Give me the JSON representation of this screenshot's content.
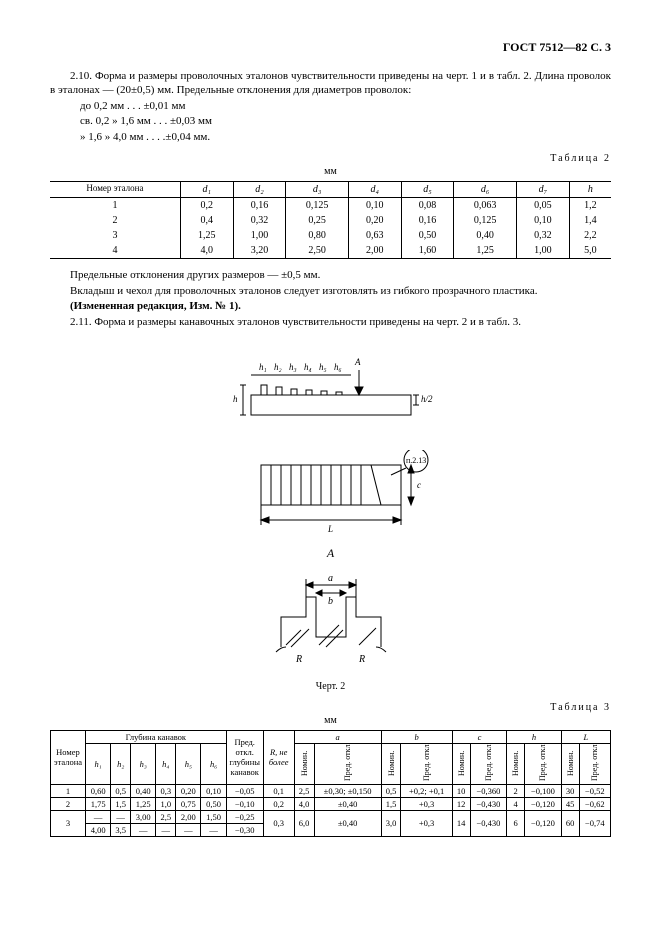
{
  "header": "ГОСТ 7512—82 С. 3",
  "p210": "2.10. Форма и размеры проволочных эталонов чувствительности приведены на черт. 1 и в табл. 2. Длина проволок в эталонах — (20±0,5)  мм. Предельные отклонения для диаметров проволок:",
  "tol1": "до 0,2 мм . . . ±0,01 мм",
  "tol2": "св. 0,2 »  1,6 мм . . . ±0,03 мм",
  "tol3": "»  1,6 »  4,0 мм . . . .±0,04 мм.",
  "tab2label": "Таблица 2",
  "unit_mm": "мм",
  "t2": {
    "headers": [
      "Номер эталона",
      "d₁",
      "d₂",
      "d₃",
      "d₄",
      "d₅",
      "d₆",
      "d₇",
      "h"
    ],
    "rows": [
      [
        "1",
        "0,2",
        "0,16",
        "0,125",
        "0,10",
        "0,08",
        "0,063",
        "0,05",
        "1,2"
      ],
      [
        "2",
        "0,4",
        "0,32",
        "0,25",
        "0,20",
        "0,16",
        "0,125",
        "0,10",
        "1,4"
      ],
      [
        "3",
        "1,25",
        "1,00",
        "0,80",
        "0,63",
        "0,50",
        "0,40",
        "0,32",
        "2,2"
      ],
      [
        "4",
        "4,0",
        "3,20",
        "2,50",
        "2,00",
        "1,60",
        "1,25",
        "1,00",
        "5,0"
      ]
    ]
  },
  "p_after_t2_1": "Предельные отклонения других размеров — ±0,5 мм.",
  "p_after_t2_2": "Вкладыш и чехол для проволочных эталонов следует изготовлять из гибкого прозрачного пластика.",
  "p_izmred": "(Измененная редакция, Изм. № 1).",
  "p211": "2.11.  Форма и размеры канавочных эталонов чувствительности приведены на черт. 2 и в табл. 3.",
  "fig2": {
    "top_labels": [
      "h₁",
      "h₂",
      "h₃",
      "h₄",
      "h₅",
      "h₆",
      "A"
    ],
    "hv": "h/2",
    "h_left": "h",
    "n213": "п.2.13",
    "L": "L",
    "c": "c",
    "A": "A",
    "a": "a",
    "b": "b",
    "R": "R",
    "caption": "Черт. 2"
  },
  "tab3label": "Таблица 3",
  "t3": {
    "group_headers": [
      "Номер эта­ло­на",
      "Глубина канавок",
      "Пред. откл. глу­би­ны кана­вок",
      "R, не более",
      "a",
      "b",
      "c",
      "h",
      "L"
    ],
    "sub_h": [
      "h₁",
      "h₂",
      "h₃",
      "h₄",
      "h₅",
      "h₆"
    ],
    "nom": "Номин.",
    "pred": "Пред. откл.",
    "rows": [
      {
        "n": "1",
        "h": [
          "0,60",
          "0,5",
          "0,40",
          "0,3",
          "0,20",
          "0,10"
        ],
        "po": "−0,05",
        "r": "0,1",
        "a": [
          "2,5",
          "±0,30; ±0,150"
        ],
        "b": [
          "0,5",
          "+0,2; +0,1"
        ],
        "c": [
          "10",
          "−0,360"
        ],
        "hh": [
          "2",
          "−0,100"
        ],
        "L": [
          "30",
          "−0,52"
        ]
      },
      {
        "n": "2",
        "h": [
          "1,75",
          "1,5",
          "1,25",
          "1,0",
          "0,75",
          "0,50"
        ],
        "po": "−0,10",
        "r": "0,2",
        "a": [
          "4,0",
          "±0,40"
        ],
        "b": [
          "1,5",
          "+0,3"
        ],
        "c": [
          "12",
          "−0,430"
        ],
        "hh": [
          "4",
          "−0,120"
        ],
        "L": [
          "45",
          "−0,62"
        ]
      },
      {
        "n": "3",
        "h_top": [
          "—",
          "—",
          "3,00",
          "2,5",
          "2,00",
          "1,50"
        ],
        "po_top": "−0,25",
        "h_bot": [
          "4,00",
          "3,5",
          "—",
          "—",
          "—",
          "—"
        ],
        "po_bot": "−0,30",
        "r": "0,3",
        "a": [
          "6,0",
          "±0,40"
        ],
        "b": [
          "3,0",
          "+0,3"
        ],
        "c": [
          "14",
          "−0,430"
        ],
        "hh": [
          "6",
          "−0,120"
        ],
        "L": [
          "60",
          "−0,74"
        ]
      }
    ]
  }
}
